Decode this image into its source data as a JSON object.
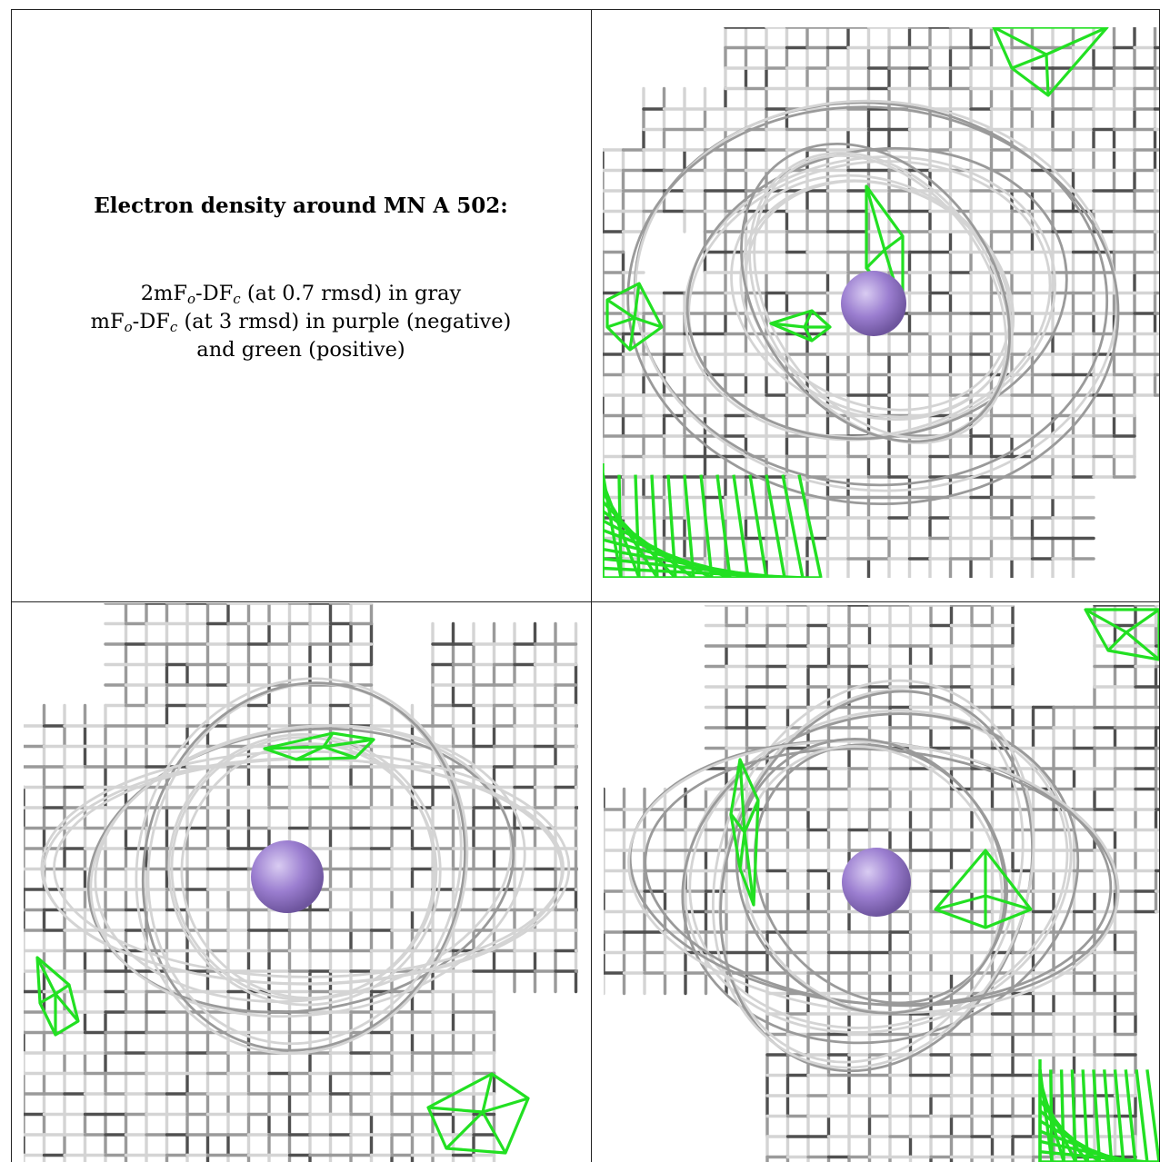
{
  "title": "Electron density around MN A 502:",
  "legend": {
    "line1": {
      "a": "2mF",
      "a_sub": "o",
      "b": "-DF",
      "b_sub": "c",
      "rest": " (at 0.7 rmsd) in gray"
    },
    "line2": {
      "a": "mF",
      "a_sub": "o",
      "b": "-DF",
      "b_sub": "c",
      "rest": " (at 3 rmsd) in purple (negative)"
    },
    "line3": "and green (positive)"
  },
  "colors": {
    "mesh_gray": "#9a9a9a",
    "mesh_dark": "#505050",
    "mesh_light": "#d4d4d4",
    "positive_green": "#22e022",
    "atom_purple": "#9b7ed0"
  },
  "panels": [
    {
      "id": "top-right",
      "view": "view-1"
    },
    {
      "id": "bottom-left",
      "view": "view-2"
    },
    {
      "id": "bottom-right",
      "view": "view-3"
    }
  ]
}
